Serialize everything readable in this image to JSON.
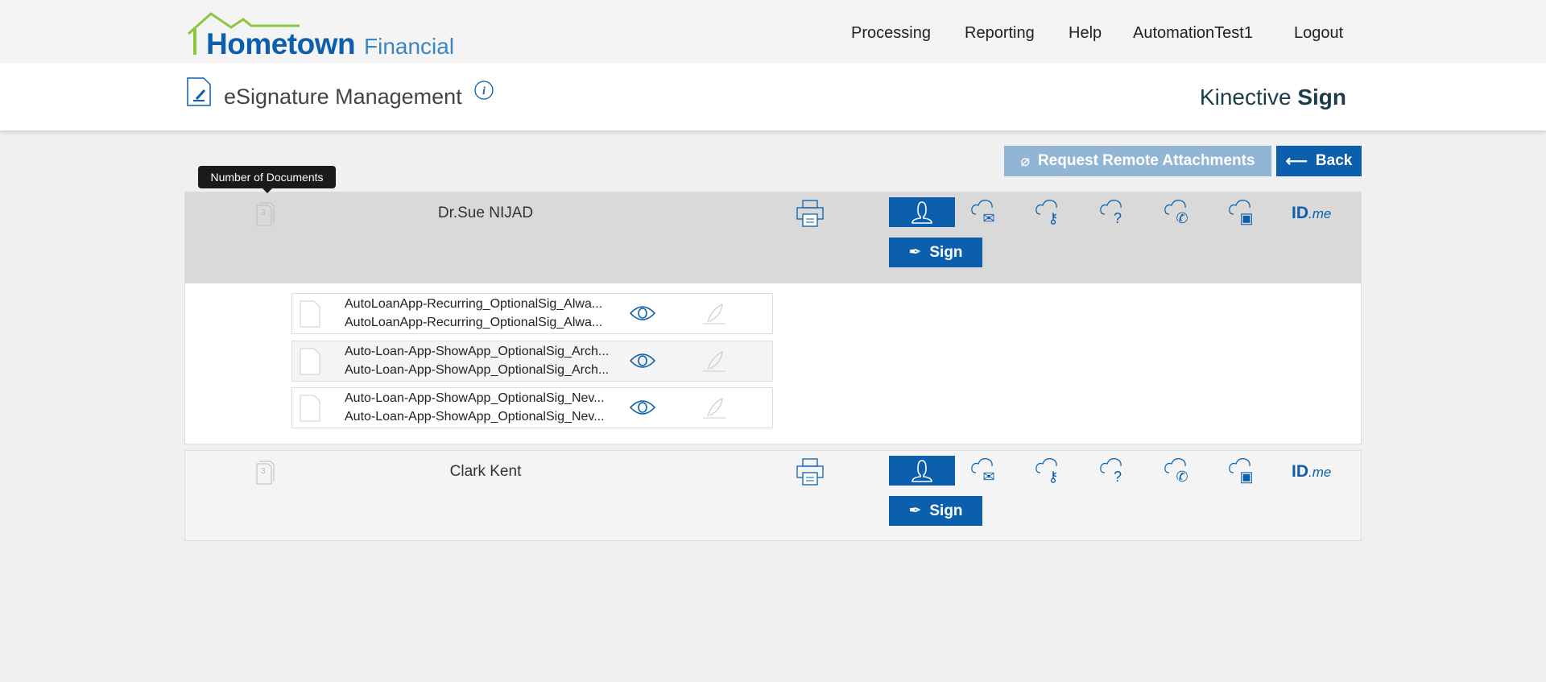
{
  "header": {
    "logo_main": "Hometown",
    "logo_sub": "Financial",
    "nav": [
      "Processing",
      "Reporting",
      "Help",
      "AutomationTest1",
      "Logout"
    ]
  },
  "subheader": {
    "title": "eSignature Management",
    "brand_light": "Kinective",
    "brand_bold": "Sign"
  },
  "toolbar": {
    "request_label": "Request Remote Attachments",
    "back_label": "Back"
  },
  "tooltip": "Number of Documents",
  "signers": [
    {
      "name": "Dr.Sue NIJAD",
      "doc_count": "3",
      "sign_label": "Sign",
      "idme": "ID",
      "idme_suffix": ".me",
      "documents": [
        {
          "line1": "AutoLoanApp-Recurring_OptionalSig_Alwa...",
          "line2": "AutoLoanApp-Recurring_OptionalSig_Alwa..."
        },
        {
          "line1": "Auto-Loan-App-ShowApp_OptionalSig_Arch...",
          "line2": "Auto-Loan-App-ShowApp_OptionalSig_Arch..."
        },
        {
          "line1": "Auto-Loan-App-ShowApp_OptionalSig_Nev...",
          "line2": "Auto-Loan-App-ShowApp_OptionalSig_Nev..."
        }
      ]
    },
    {
      "name": "Clark Kent",
      "doc_count": "3",
      "sign_label": "Sign",
      "idme": "ID",
      "idme_suffix": ".me"
    }
  ],
  "colors": {
    "primary": "#0b5fad",
    "disabled": "#92b5d6",
    "logo_green": "#8cc63f"
  }
}
